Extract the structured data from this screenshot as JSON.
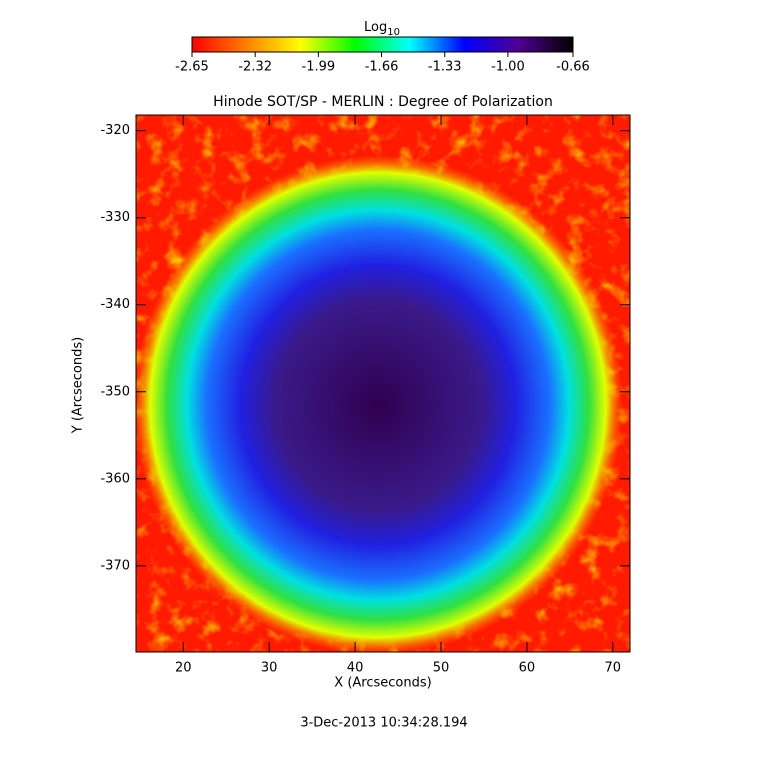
{
  "chart_data": {
    "type": "image",
    "title": "Hinode SOT/SP - MERLIN : Degree of Polarization",
    "xlabel": "X (Arcseconds)",
    "ylabel": "Y (Arcseconds)",
    "xlim": [
      14.5,
      72.0
    ],
    "ylim": [
      -379.9,
      -318.2
    ],
    "xticks": [
      20,
      30,
      40,
      50,
      60,
      70
    ],
    "yticks": [
      -320,
      -330,
      -340,
      -350,
      -360,
      -370
    ],
    "colorbar": {
      "label": "Log",
      "label_subscript": "10",
      "lim": [
        -2.65,
        -0.66
      ],
      "ticks": [
        -2.65,
        -2.32,
        -1.99,
        -1.66,
        -1.33,
        {
          "value": -1.0,
          "label": "-1.00"
        },
        -0.66
      ],
      "colormap": [
        "#ff0000",
        "#ff8000",
        "#ffff00",
        "#00ff00",
        "#00ffff",
        "#0000ff",
        "#500090",
        "#000000"
      ]
    },
    "footer": "3-Dec-2013 10:34:28.194"
  }
}
